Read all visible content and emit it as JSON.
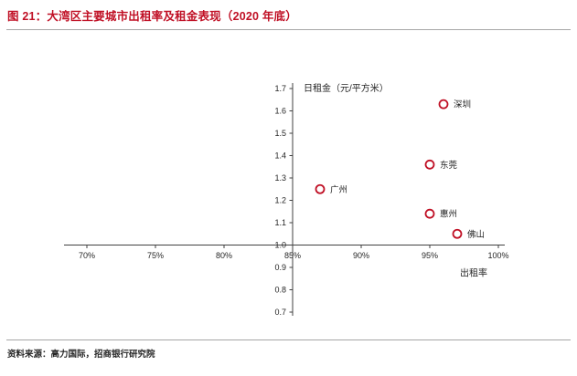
{
  "header": {
    "title": "图 21：大湾区主要城市出租率及租金表现（2020 年底）"
  },
  "footer": {
    "source": "资料来源：高力国际，招商银行研究院"
  },
  "colors": {
    "accent": "#c01025",
    "axis": "#404040",
    "text": "#262626"
  },
  "chart_data": {
    "type": "scatter",
    "title": "",
    "xlabel": "出租率",
    "ylabel": "日租金（元/平方米）",
    "xlim": [
      0.7,
      1.0
    ],
    "ylim": [
      0.7,
      1.7
    ],
    "x_ticks": [
      "70%",
      "75%",
      "80%",
      "85%",
      "90%",
      "95%",
      "100%"
    ],
    "x_tick_values": [
      0.7,
      0.75,
      0.8,
      0.85,
      0.9,
      0.95,
      1.0
    ],
    "y_ticks": [
      "1.7",
      "1.6",
      "1.5",
      "1.4",
      "1.3",
      "1.2",
      "1.1",
      "1.0",
      "0.9",
      "0.8",
      "0.7"
    ],
    "y_tick_values": [
      1.7,
      1.6,
      1.5,
      1.4,
      1.3,
      1.2,
      1.1,
      1.0,
      0.9,
      0.8,
      0.7
    ],
    "axis_cross": {
      "x": 0.85,
      "y": 1.0
    },
    "grid": false,
    "legend": null,
    "points": [
      {
        "label": "深圳",
        "x": 0.96,
        "y": 1.63
      },
      {
        "label": "东莞",
        "x": 0.95,
        "y": 1.36
      },
      {
        "label": "广州",
        "x": 0.87,
        "y": 1.25
      },
      {
        "label": "惠州",
        "x": 0.95,
        "y": 1.14
      },
      {
        "label": "佛山",
        "x": 0.97,
        "y": 1.05
      }
    ]
  }
}
